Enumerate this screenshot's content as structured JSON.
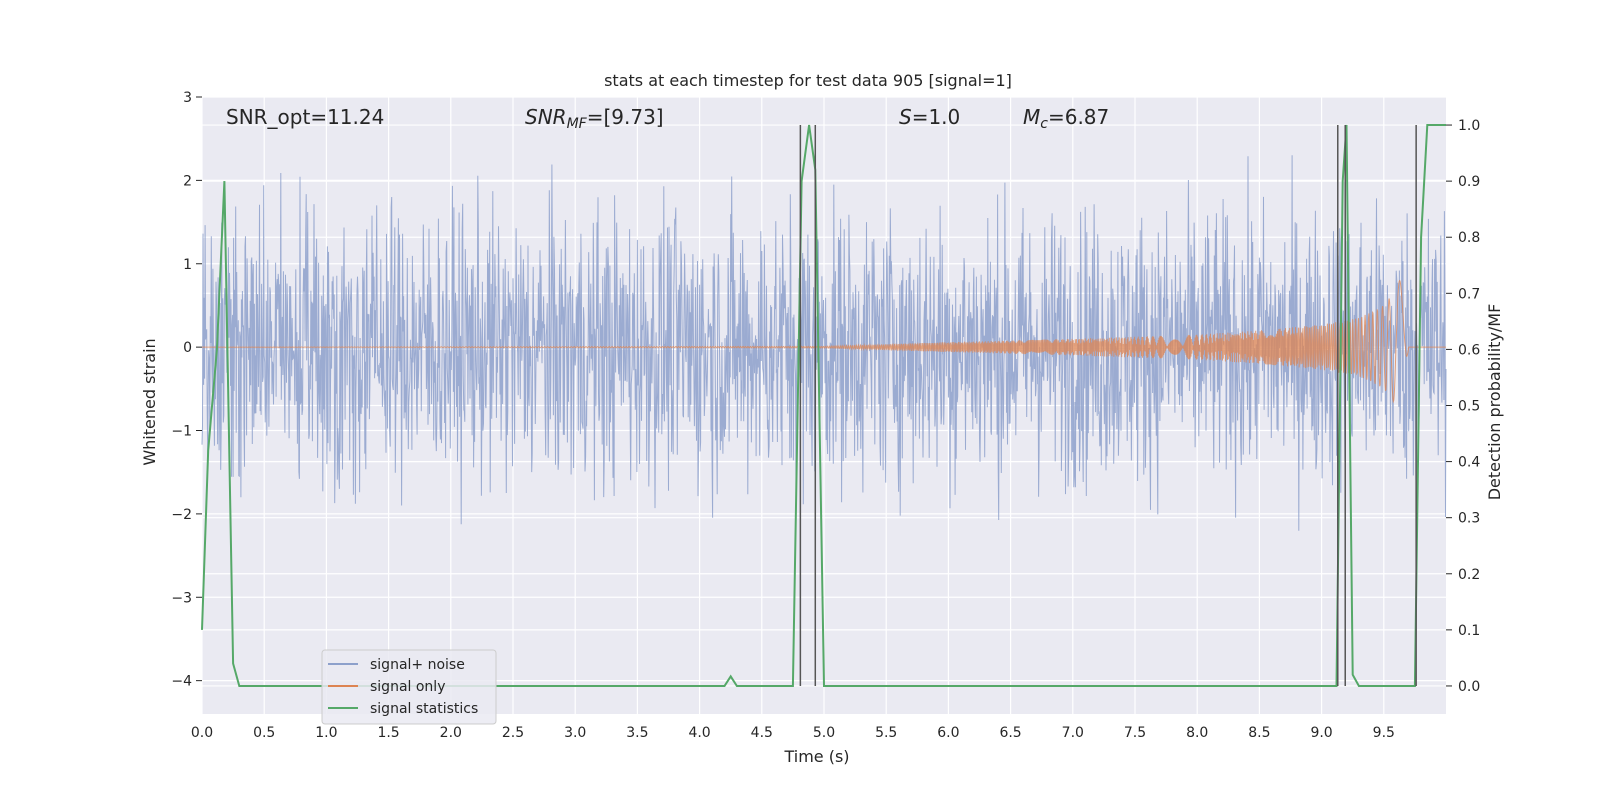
{
  "chart_data": {
    "type": "line",
    "title": "stats at each timestep for test data 905 [signal=1]",
    "xlabel": "Time (s)",
    "ylabel": "Whitened strain",
    "y2label": "Detection probability/MF",
    "xlim": [
      0.0,
      10.0
    ],
    "ylim": [
      -4.4,
      3.0
    ],
    "y2lim": [
      -0.05,
      1.05
    ],
    "x_ticks": [
      "0.0",
      "0.5",
      "1.0",
      "1.5",
      "2.0",
      "2.5",
      "3.0",
      "3.5",
      "4.0",
      "4.5",
      "5.0",
      "5.5",
      "6.0",
      "6.5",
      "7.0",
      "7.5",
      "8.0",
      "8.5",
      "9.0",
      "9.5"
    ],
    "y_ticks": [
      "-4",
      "-3",
      "-2",
      "-1",
      "0",
      "1",
      "2",
      "3"
    ],
    "y2_ticks": [
      "0.0",
      "0.1",
      "0.2",
      "0.3",
      "0.4",
      "0.5",
      "0.6",
      "0.7",
      "0.8",
      "0.9",
      "1.0"
    ],
    "grid": true,
    "legend_position": "lower-left",
    "annotations": {
      "snr_opt": "SNR_opt=11.24",
      "snr_mf_label": "SNR",
      "snr_mf_sub": "MF",
      "snr_mf_value": "=[9.73]",
      "s_label": "S",
      "s_value": "=1.0",
      "mc_label": "M",
      "mc_sub": "c",
      "mc_value": "=6.87"
    },
    "series": [
      {
        "name": "signal+ noise",
        "color": "#8da0cb",
        "kind": "noise",
        "envelope": 1.5
      },
      {
        "name": "signal only",
        "color": "#dd8452",
        "kind": "chirp",
        "x": [
          0.0,
          5.0,
          6.0,
          7.0,
          8.0,
          8.5,
          9.0,
          9.3,
          9.5,
          9.6,
          9.68,
          9.7,
          10.0
        ],
        "amplitude": [
          0.0,
          0.01,
          0.06,
          0.1,
          0.15,
          0.2,
          0.27,
          0.35,
          0.5,
          0.7,
          1.0,
          0.0,
          0.0
        ]
      },
      {
        "name": "signal statistics",
        "color": "#55a868",
        "kind": "probability",
        "x": [
          0.0,
          0.05,
          0.12,
          0.18,
          0.25,
          0.3,
          4.2,
          4.25,
          4.3,
          4.75,
          4.82,
          4.88,
          4.93,
          5.0,
          9.12,
          9.17,
          9.2,
          9.25,
          9.3,
          9.75,
          9.8,
          9.85,
          10.0
        ],
        "values": [
          0.1,
          0.42,
          0.6,
          0.9,
          0.04,
          0.0,
          0.0,
          0.017,
          0.0,
          0.0,
          0.9,
          1.0,
          0.92,
          0.0,
          0.0,
          0.9,
          1.0,
          0.02,
          0.0,
          0.0,
          0.8,
          1.0,
          1.0
        ]
      }
    ],
    "vlines": [
      4.81,
      4.93,
      9.13,
      9.19,
      9.76
    ]
  }
}
